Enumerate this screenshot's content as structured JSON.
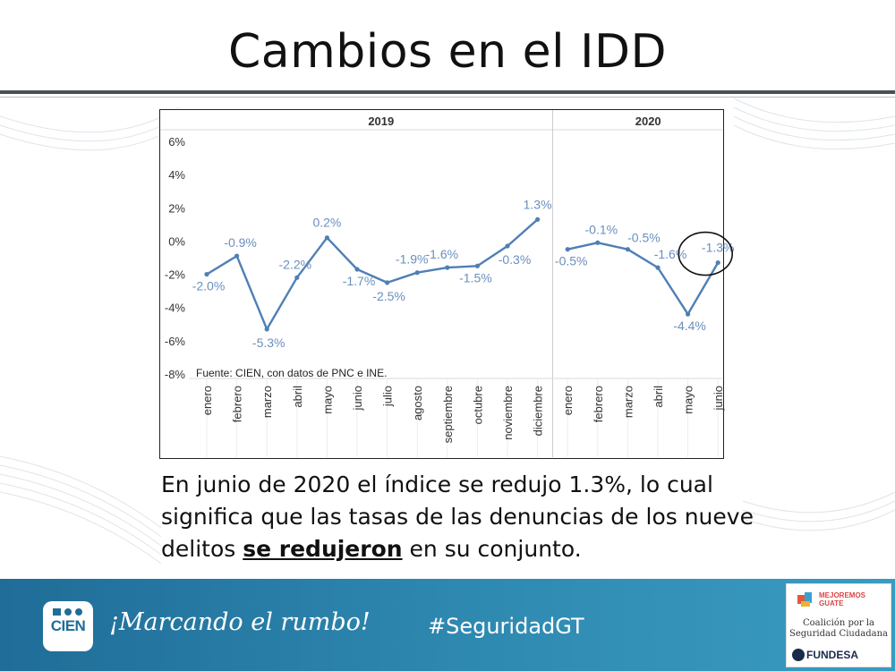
{
  "slide": {
    "title": "Cambios en el IDD",
    "caption_part1": "En junio de 2020 el índice se redujo 1.3%, lo cual significa que las tasas de las denuncias de los nueve delitos ",
    "caption_bold": "se redujeron",
    "caption_part2": " en su conjunto."
  },
  "footer": {
    "logo_text": "CIEN",
    "slogan": "¡Marcando el rumbo!",
    "hashtag": "#SeguridadGT",
    "partner_top": "MEJOREMOS GUATE",
    "partner_mid_line1": "Coalición por la",
    "partner_mid_line2": "Seguridad Ciudadana",
    "partner_bottom": "FUNDESA"
  },
  "colors": {
    "line": "#4f7fb5",
    "label": "#6a8fbe",
    "footer": "#2a7fa8"
  },
  "chart_data": {
    "type": "line",
    "source_note": "Fuente: CIEN, con datos de PNC e INE.",
    "ylim": [
      -8,
      7
    ],
    "yticks": [
      "6%",
      "4%",
      "2%",
      "0%",
      "-2%",
      "-4%",
      "-6%",
      "-8%"
    ],
    "ytick_values": [
      6,
      4,
      2,
      0,
      -2,
      -4,
      -6,
      -8
    ],
    "panels": [
      {
        "year": "2019",
        "categories": [
          "enero",
          "febrero",
          "marzo",
          "abril",
          "mayo",
          "junio",
          "julio",
          "agosto",
          "septiembre",
          "octubre",
          "noviembre",
          "diciembre"
        ],
        "values": [
          -2.0,
          -0.9,
          -5.3,
          -2.2,
          0.2,
          -1.7,
          -2.5,
          -1.9,
          -1.6,
          -1.5,
          -0.3,
          1.3
        ],
        "labels": [
          "-2.0%",
          "-0.9%",
          "-5.3%",
          "-2.2%",
          "0.2%",
          "-1.7%",
          "-2.5%",
          "-1.9%",
          "-1.6%",
          "-1.5%",
          "-0.3%",
          "1.3%"
        ]
      },
      {
        "year": "2020",
        "categories": [
          "enero",
          "febrero",
          "marzo",
          "abril",
          "mayo",
          "junio"
        ],
        "values": [
          -0.5,
          -0.1,
          -0.5,
          -1.6,
          -4.4,
          -1.3
        ],
        "labels": [
          "-0.5%",
          "-0.1%",
          "-0.5%",
          "-1.6%",
          "-4.4%",
          "-1.3%"
        ]
      }
    ],
    "highlight": {
      "panel": 1,
      "index": 5
    }
  }
}
